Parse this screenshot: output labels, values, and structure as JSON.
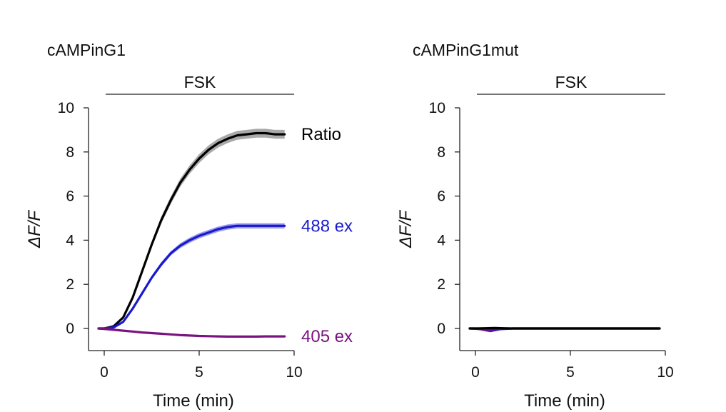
{
  "chart_data": [
    {
      "type": "line",
      "title": "cAMPinG1",
      "treatment_label": "FSK",
      "treatment_range": [
        0,
        10
      ],
      "xlabel": "Time (min)",
      "ylabel": "ΔF/F",
      "xlim": [
        -0.8,
        10
      ],
      "ylim": [
        -1,
        10
      ],
      "xticks": [
        0,
        5,
        10
      ],
      "yticks": [
        0,
        2,
        4,
        6,
        8,
        10
      ],
      "x_tick_labels": [
        "0",
        "5",
        "10"
      ],
      "y_tick_labels": [
        "0",
        "2",
        "4",
        "6",
        "8",
        "10"
      ],
      "error_band": true,
      "legend": "direct labels at line ends",
      "series": [
        {
          "name": "Ratio",
          "color": "#000000",
          "band_color": "#9a9a9a",
          "x": [
            -0.3,
            0,
            0.5,
            1.0,
            1.5,
            2.0,
            2.5,
            3.0,
            3.5,
            4.0,
            4.5,
            5.0,
            5.5,
            6.0,
            6.5,
            7.0,
            7.5,
            8.0,
            8.5,
            9.0,
            9.5
          ],
          "y": [
            0,
            0,
            0.1,
            0.5,
            1.4,
            2.6,
            3.8,
            4.9,
            5.8,
            6.6,
            7.2,
            7.7,
            8.1,
            8.4,
            8.6,
            8.75,
            8.8,
            8.85,
            8.85,
            8.8,
            8.8
          ],
          "band": [
            0,
            0.03,
            0.05,
            0.07,
            0.1,
            0.12,
            0.14,
            0.16,
            0.17,
            0.18,
            0.19,
            0.2,
            0.2,
            0.2,
            0.2,
            0.2,
            0.2,
            0.2,
            0.2,
            0.2,
            0.2
          ]
        },
        {
          "name": "488 ex",
          "color": "#1a1acc",
          "band_color": "#8a8af0",
          "x": [
            -0.3,
            0,
            0.5,
            1.0,
            1.5,
            2.0,
            2.5,
            3.0,
            3.5,
            4.0,
            4.5,
            5.0,
            5.5,
            6.0,
            6.5,
            7.0,
            7.5,
            8.0,
            8.5,
            9.0,
            9.5
          ],
          "y": [
            0,
            0,
            0.05,
            0.3,
            0.9,
            1.6,
            2.3,
            2.9,
            3.4,
            3.75,
            4.0,
            4.2,
            4.35,
            4.5,
            4.6,
            4.65,
            4.65,
            4.65,
            4.65,
            4.65,
            4.65
          ],
          "band": [
            0,
            0.03,
            0.04,
            0.05,
            0.07,
            0.08,
            0.09,
            0.1,
            0.1,
            0.11,
            0.12,
            0.12,
            0.12,
            0.12,
            0.12,
            0.12,
            0.12,
            0.12,
            0.12,
            0.12,
            0.12
          ]
        },
        {
          "name": "405 ex",
          "color": "#7a1280",
          "band_color": "#c08cc4",
          "x": [
            -0.3,
            0,
            0.5,
            1.0,
            1.5,
            2.0,
            2.5,
            3.0,
            3.5,
            4.0,
            4.5,
            5.0,
            5.5,
            6.0,
            6.5,
            7.0,
            7.5,
            8.0,
            8.5,
            9.0,
            9.5
          ],
          "y": [
            0,
            -0.02,
            -0.06,
            -0.1,
            -0.14,
            -0.18,
            -0.21,
            -0.24,
            -0.27,
            -0.3,
            -0.32,
            -0.34,
            -0.35,
            -0.36,
            -0.37,
            -0.37,
            -0.37,
            -0.37,
            -0.36,
            -0.36,
            -0.36
          ],
          "band": [
            0,
            0.02,
            0.02,
            0.02,
            0.03,
            0.03,
            0.03,
            0.03,
            0.03,
            0.03,
            0.03,
            0.03,
            0.03,
            0.03,
            0.03,
            0.03,
            0.03,
            0.03,
            0.03,
            0.03,
            0.03
          ]
        }
      ]
    },
    {
      "type": "line",
      "title": "cAMPinG1mut",
      "treatment_label": "FSK",
      "treatment_range": [
        0,
        10
      ],
      "xlabel": "Time (min)",
      "ylabel": "ΔF/F",
      "xlim": [
        -0.8,
        10
      ],
      "ylim": [
        -1,
        10
      ],
      "xticks": [
        0,
        5,
        10
      ],
      "yticks": [
        0,
        2,
        4,
        6,
        8,
        10
      ],
      "x_tick_labels": [
        "0",
        "5",
        "10"
      ],
      "y_tick_labels": [
        "0",
        "2",
        "4",
        "6",
        "8",
        "10"
      ],
      "error_band": true,
      "series": [
        {
          "name": "",
          "color": "#7a1280",
          "band_color": "#c08cc4",
          "x": [
            -0.3,
            0,
            0.3,
            0.6,
            0.8,
            1.0,
            1.3,
            1.6,
            2.0,
            3.0,
            4.0,
            5.0,
            6.0,
            7.0,
            8.0,
            9.0,
            9.7
          ],
          "y": [
            0,
            -0.01,
            -0.04,
            -0.09,
            -0.12,
            -0.08,
            -0.03,
            -0.01,
            0,
            0,
            0,
            0,
            0,
            0,
            0,
            0,
            0
          ],
          "band": [
            0,
            0.02,
            0.02,
            0.03,
            0.03,
            0.03,
            0.02,
            0.02,
            0.02,
            0.02,
            0.02,
            0.02,
            0.02,
            0.02,
            0.02,
            0.02,
            0.02
          ]
        },
        {
          "name": "",
          "color": "#1a1acc",
          "band_color": "#8a8af0",
          "x": [
            -0.3,
            0,
            0.5,
            1.0,
            1.5,
            2.0,
            3.0,
            4.0,
            5.0,
            6.0,
            7.0,
            8.0,
            9.0,
            9.7
          ],
          "y": [
            0,
            0,
            -0.02,
            -0.04,
            -0.02,
            0,
            0,
            0,
            0,
            0,
            0,
            0,
            0,
            0
          ],
          "band": [
            0,
            0.02,
            0.02,
            0.02,
            0.02,
            0.02,
            0.02,
            0.02,
            0.02,
            0.02,
            0.02,
            0.02,
            0.02,
            0.02
          ]
        },
        {
          "name": "",
          "color": "#000000",
          "band_color": "#9a9a9a",
          "x": [
            -0.3,
            0,
            0.5,
            1.0,
            1.5,
            2.0,
            3.0,
            4.0,
            5.0,
            6.0,
            7.0,
            8.0,
            9.0,
            9.7
          ],
          "y": [
            0,
            0,
            0.01,
            0.02,
            0.01,
            0,
            0,
            0,
            0,
            0,
            0,
            0,
            0,
            0
          ],
          "band": [
            0,
            0.02,
            0.02,
            0.02,
            0.02,
            0.02,
            0.02,
            0.02,
            0.02,
            0.02,
            0.02,
            0.02,
            0.02,
            0.02
          ]
        }
      ]
    }
  ]
}
